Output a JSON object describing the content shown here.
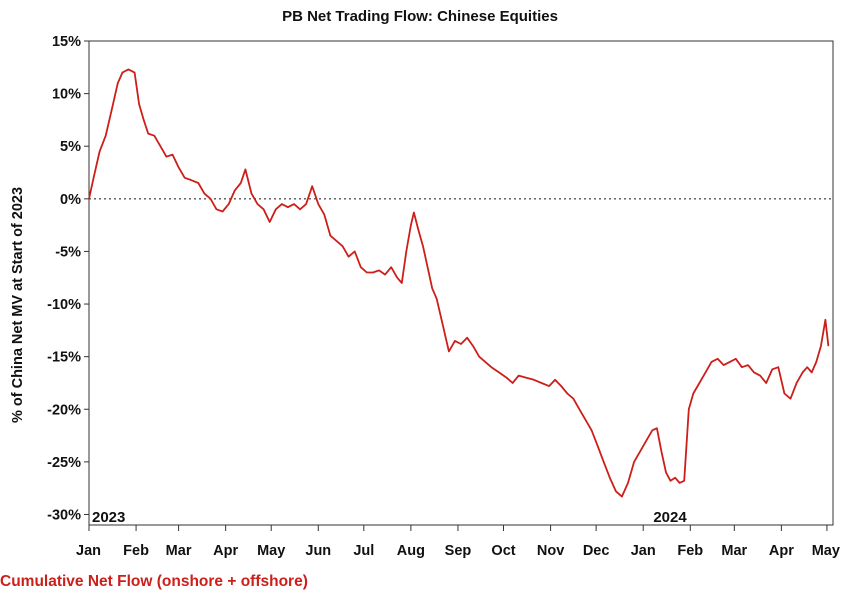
{
  "chart_data": {
    "type": "line",
    "title": "PB Net Trading Flow: Chinese Equities",
    "xlabel": "",
    "ylabel": "% of China Net MV at Start of 2023",
    "ylim": [
      -31,
      15
    ],
    "yticks": [
      15,
      10,
      5,
      0,
      -5,
      -10,
      -15,
      -20,
      -25,
      -30
    ],
    "ytick_labels": [
      "15%",
      "10%",
      "5%",
      "0%",
      "-5%",
      "-10%",
      "-15%",
      "-20%",
      "-25%",
      "-30%"
    ],
    "xlim": [
      "2023-01-01",
      "2024-05-05"
    ],
    "xticks": [
      "2023-01-01",
      "2023-02-01",
      "2023-03-01",
      "2023-04-01",
      "2023-05-01",
      "2023-06-01",
      "2023-07-01",
      "2023-08-01",
      "2023-09-01",
      "2023-10-01",
      "2023-11-01",
      "2023-12-01",
      "2024-01-01",
      "2024-02-01",
      "2024-03-01",
      "2024-04-01",
      "2024-05-01"
    ],
    "xtick_labels": [
      "Jan",
      "Feb",
      "Mar",
      "Apr",
      "May",
      "Jun",
      "Jul",
      "Aug",
      "Sep",
      "Oct",
      "Nov",
      "Dec",
      "Jan",
      "Feb",
      "Mar",
      "Apr",
      "May"
    ],
    "annotations": [
      {
        "text": "2023",
        "x": "2023-01-01"
      },
      {
        "text": "2024",
        "x": "2024-01-01"
      }
    ],
    "zero_line": {
      "y": 0,
      "style": "dotted"
    },
    "grid": false,
    "legend_position": "bottom-left",
    "series": [
      {
        "name": "Cumulative Net Flow (onshore + offshore)",
        "color": "#cc1f1a",
        "points": [
          [
            "2023-01-01",
            0.0
          ],
          [
            "2023-01-04",
            2.0
          ],
          [
            "2023-01-08",
            4.5
          ],
          [
            "2023-01-12",
            6.0
          ],
          [
            "2023-01-16",
            8.5
          ],
          [
            "2023-01-20",
            11.0
          ],
          [
            "2023-01-23",
            12.0
          ],
          [
            "2023-01-27",
            12.3
          ],
          [
            "2023-01-31",
            12.0
          ],
          [
            "2023-02-03",
            9.0
          ],
          [
            "2023-02-06",
            7.5
          ],
          [
            "2023-02-09",
            6.2
          ],
          [
            "2023-02-13",
            6.0
          ],
          [
            "2023-02-17",
            5.0
          ],
          [
            "2023-02-21",
            4.0
          ],
          [
            "2023-02-25",
            4.2
          ],
          [
            "2023-03-01",
            3.0
          ],
          [
            "2023-03-05",
            2.0
          ],
          [
            "2023-03-09",
            1.8
          ],
          [
            "2023-03-14",
            1.5
          ],
          [
            "2023-03-18",
            0.5
          ],
          [
            "2023-03-22",
            0.0
          ],
          [
            "2023-03-26",
            -1.0
          ],
          [
            "2023-03-30",
            -1.2
          ],
          [
            "2023-04-03",
            -0.5
          ],
          [
            "2023-04-07",
            0.8
          ],
          [
            "2023-04-11",
            1.5
          ],
          [
            "2023-04-14",
            2.8
          ],
          [
            "2023-04-18",
            0.5
          ],
          [
            "2023-04-22",
            -0.5
          ],
          [
            "2023-04-26",
            -1.0
          ],
          [
            "2023-04-30",
            -2.2
          ],
          [
            "2023-05-04",
            -1.0
          ],
          [
            "2023-05-08",
            -0.5
          ],
          [
            "2023-05-12",
            -0.8
          ],
          [
            "2023-05-16",
            -0.5
          ],
          [
            "2023-05-20",
            -1.0
          ],
          [
            "2023-05-24",
            -0.5
          ],
          [
            "2023-05-28",
            1.2
          ],
          [
            "2023-06-01",
            -0.5
          ],
          [
            "2023-06-05",
            -1.5
          ],
          [
            "2023-06-09",
            -3.5
          ],
          [
            "2023-06-13",
            -4.0
          ],
          [
            "2023-06-17",
            -4.5
          ],
          [
            "2023-06-21",
            -5.5
          ],
          [
            "2023-06-25",
            -5.0
          ],
          [
            "2023-06-29",
            -6.5
          ],
          [
            "2023-07-03",
            -7.0
          ],
          [
            "2023-07-07",
            -7.0
          ],
          [
            "2023-07-11",
            -6.8
          ],
          [
            "2023-07-15",
            -7.2
          ],
          [
            "2023-07-19",
            -6.5
          ],
          [
            "2023-07-23",
            -7.5
          ],
          [
            "2023-07-26",
            -8.0
          ],
          [
            "2023-07-29",
            -5.0
          ],
          [
            "2023-08-01",
            -2.5
          ],
          [
            "2023-08-03",
            -1.3
          ],
          [
            "2023-08-06",
            -3.0
          ],
          [
            "2023-08-09",
            -4.5
          ],
          [
            "2023-08-12",
            -6.5
          ],
          [
            "2023-08-15",
            -8.5
          ],
          [
            "2023-08-18",
            -9.5
          ],
          [
            "2023-08-22",
            -12.0
          ],
          [
            "2023-08-26",
            -14.5
          ],
          [
            "2023-08-30",
            -13.5
          ],
          [
            "2023-09-03",
            -13.8
          ],
          [
            "2023-09-07",
            -13.2
          ],
          [
            "2023-09-11",
            -14.0
          ],
          [
            "2023-09-15",
            -15.0
          ],
          [
            "2023-09-19",
            -15.5
          ],
          [
            "2023-09-23",
            -16.0
          ],
          [
            "2023-09-28",
            -16.5
          ],
          [
            "2023-10-03",
            -17.0
          ],
          [
            "2023-10-07",
            -17.5
          ],
          [
            "2023-10-11",
            -16.8
          ],
          [
            "2023-10-16",
            -17.0
          ],
          [
            "2023-10-21",
            -17.2
          ],
          [
            "2023-10-26",
            -17.5
          ],
          [
            "2023-10-31",
            -17.8
          ],
          [
            "2023-11-04",
            -17.2
          ],
          [
            "2023-11-08",
            -17.8
          ],
          [
            "2023-11-12",
            -18.5
          ],
          [
            "2023-11-16",
            -19.0
          ],
          [
            "2023-11-20",
            -20.0
          ],
          [
            "2023-11-24",
            -21.0
          ],
          [
            "2023-11-28",
            -22.0
          ],
          [
            "2023-12-02",
            -23.5
          ],
          [
            "2023-12-06",
            -25.0
          ],
          [
            "2023-12-10",
            -26.5
          ],
          [
            "2023-12-14",
            -27.8
          ],
          [
            "2023-12-18",
            -28.3
          ],
          [
            "2023-12-22",
            -27.0
          ],
          [
            "2023-12-26",
            -25.0
          ],
          [
            "2023-12-30",
            -24.0
          ],
          [
            "2024-01-03",
            -23.0
          ],
          [
            "2024-01-07",
            -22.0
          ],
          [
            "2024-01-10",
            -21.8
          ],
          [
            "2024-01-13",
            -24.0
          ],
          [
            "2024-01-16",
            -26.0
          ],
          [
            "2024-01-19",
            -26.8
          ],
          [
            "2024-01-22",
            -26.5
          ],
          [
            "2024-01-25",
            -27.0
          ],
          [
            "2024-01-28",
            -26.8
          ],
          [
            "2024-01-31",
            -20.0
          ],
          [
            "2024-02-03",
            -18.5
          ],
          [
            "2024-02-07",
            -17.5
          ],
          [
            "2024-02-11",
            -16.5
          ],
          [
            "2024-02-15",
            -15.5
          ],
          [
            "2024-02-19",
            -15.2
          ],
          [
            "2024-02-23",
            -15.8
          ],
          [
            "2024-02-27",
            -15.5
          ],
          [
            "2024-03-02",
            -15.2
          ],
          [
            "2024-03-06",
            -16.0
          ],
          [
            "2024-03-10",
            -15.8
          ],
          [
            "2024-03-14",
            -16.5
          ],
          [
            "2024-03-18",
            -16.8
          ],
          [
            "2024-03-22",
            -17.5
          ],
          [
            "2024-03-26",
            -16.2
          ],
          [
            "2024-03-30",
            -16.0
          ],
          [
            "2024-04-03",
            -18.5
          ],
          [
            "2024-04-07",
            -19.0
          ],
          [
            "2024-04-11",
            -17.5
          ],
          [
            "2024-04-15",
            -16.5
          ],
          [
            "2024-04-18",
            -16.0
          ],
          [
            "2024-04-21",
            -16.5
          ],
          [
            "2024-04-24",
            -15.5
          ],
          [
            "2024-04-27",
            -14.0
          ],
          [
            "2024-04-30",
            -11.5
          ],
          [
            "2024-05-02",
            -14.0
          ]
        ]
      }
    ]
  }
}
